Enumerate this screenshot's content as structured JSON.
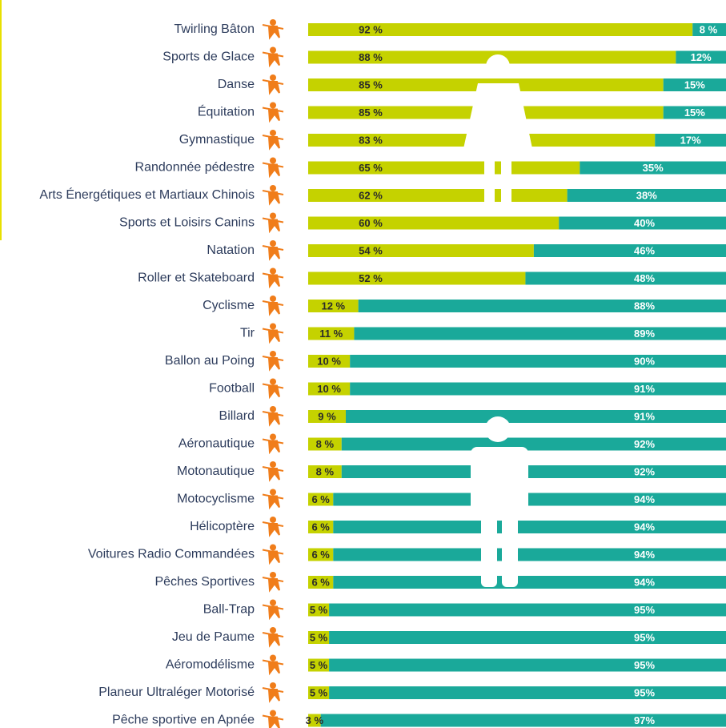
{
  "chart_data": {
    "type": "stacked-barh",
    "categories": [
      "Twirling Bâton",
      "Sports de Glace",
      "Danse",
      "Équitation",
      "Gymnastique",
      "Randonnée pédestre",
      "Arts Énergétiques et Martiaux Chinois",
      "Sports et Loisirs Canins",
      "Natation",
      "Roller et Skateboard",
      "Cyclisme",
      "Tir",
      "Ballon au Poing",
      "Football",
      "Billard",
      "Aéronautique",
      "Motonautique",
      "Motocyclisme",
      "Hélicoptère",
      "Voitures Radio Commandées",
      "Pêches Sportives",
      "Ball-Trap",
      "Jeu de Paume",
      "Aéromodélisme",
      "Planeur Ultraléger Motorisé",
      "Pêche sportive en Apnée"
    ],
    "series": [
      {
        "color": "#c5d200",
        "values": [
          92,
          88,
          85,
          85,
          83,
          65,
          62,
          60,
          54,
          52,
          12,
          11,
          10,
          10,
          9,
          8,
          8,
          6,
          6,
          6,
          6,
          5,
          5,
          5,
          5,
          3
        ],
        "value_labels": [
          "92 %",
          "88 %",
          "85 %",
          "85 %",
          "83 %",
          "65 %",
          "62 %",
          "60 %",
          "54 %",
          "52 %",
          "12 %",
          "11 %",
          "10 %",
          "10 %",
          "9 %",
          "8 %",
          "8 %",
          "6 %",
          "6 %",
          "6 %",
          "6 %",
          "5 %",
          "5 %",
          "5 %",
          "5 %",
          "3 %"
        ]
      },
      {
        "color": "#1aa99a",
        "values": [
          8,
          12,
          15,
          15,
          17,
          35,
          38,
          40,
          46,
          48,
          88,
          89,
          90,
          91,
          91,
          92,
          92,
          94,
          94,
          94,
          94,
          95,
          95,
          95,
          95,
          97
        ],
        "value_labels": [
          "8 %",
          "12%",
          "15%",
          "15%",
          "17%",
          "35%",
          "38%",
          "40%",
          "46%",
          "48%",
          "88%",
          "89%",
          "90%",
          "91%",
          "91%",
          "92%",
          "92%",
          "94%",
          "94%",
          "94%",
          "94%",
          "95%",
          "95%",
          "95%",
          "95%",
          "97%"
        ]
      }
    ],
    "xlim": [
      0,
      100
    ]
  }
}
